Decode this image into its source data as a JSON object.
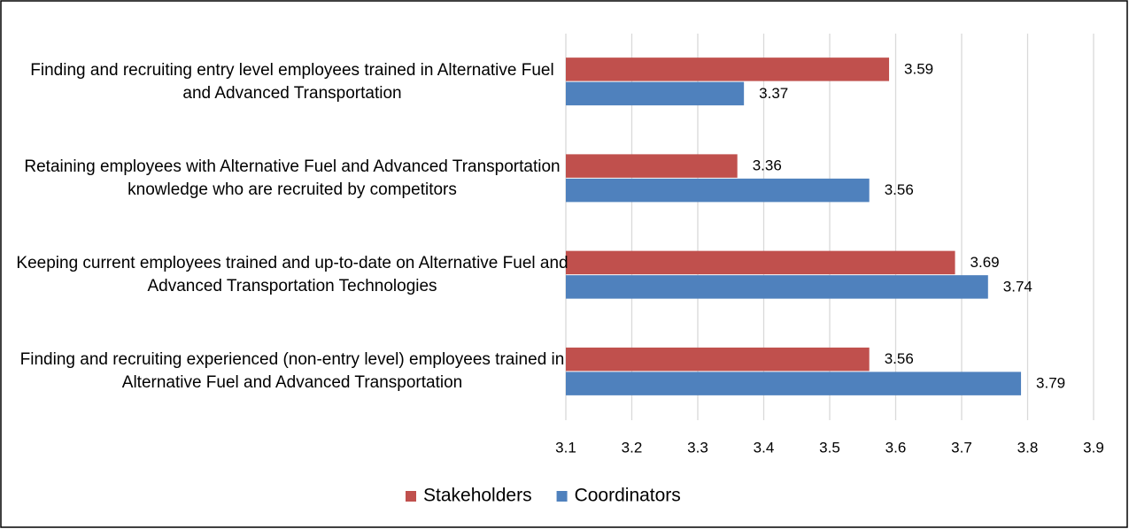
{
  "chart_data": {
    "type": "hbar",
    "categories": [
      "Finding and recruiting entry level employees trained in Alternative Fuel and Advanced Transportation",
      "Retaining employees with Alternative Fuel and Advanced Transportation knowledge who are recruited by competitors",
      "Keeping current employees trained and up-to-date on Alternative Fuel and Advanced Transportation Technologies",
      "Finding and recruiting experienced (non-entry level) employees trained in Alternative Fuel and Advanced Transportation"
    ],
    "series": [
      {
        "name": "Stakeholders",
        "color": "#c0504d",
        "values": [
          3.59,
          3.36,
          3.69,
          3.56
        ]
      },
      {
        "name": "Coordinators",
        "color": "#4f81bd",
        "values": [
          3.37,
          3.56,
          3.74,
          3.79
        ]
      }
    ],
    "xlim": [
      3.1,
      3.9
    ],
    "xticks": [
      3.1,
      3.2,
      3.3,
      3.4,
      3.5,
      3.6,
      3.7,
      3.8,
      3.9
    ],
    "grid": true,
    "legend": "bottom"
  }
}
